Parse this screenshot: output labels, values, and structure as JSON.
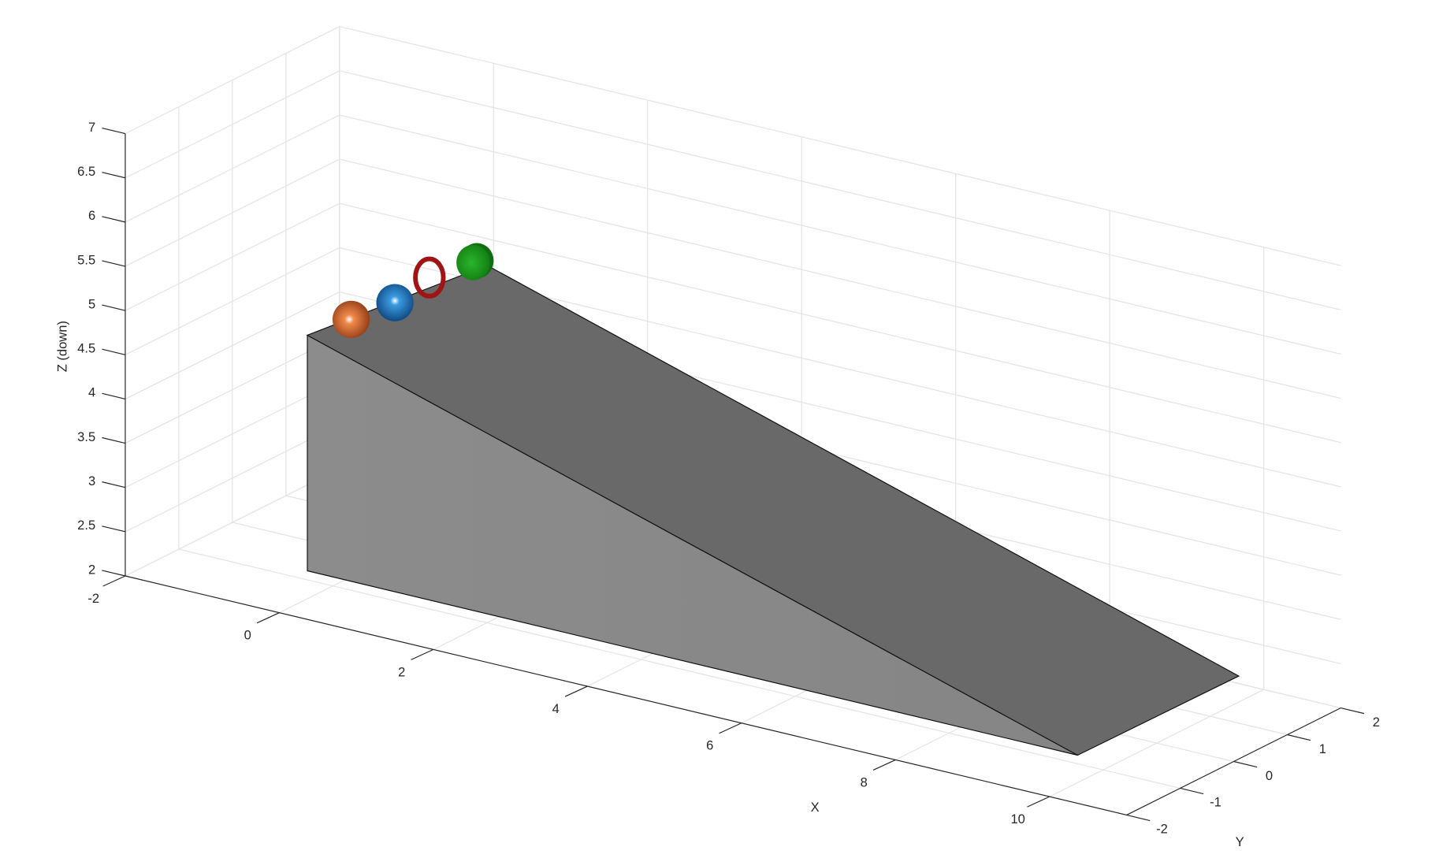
{
  "chart_data": {
    "type": "scene3d",
    "x_label": "X",
    "y_label": "Y",
    "z_label": "Z (down)",
    "xlim": [
      -2,
      11
    ],
    "ylim": [
      -2,
      2
    ],
    "zlim": [
      2,
      7
    ],
    "xticks": [
      -2,
      0,
      2,
      4,
      6,
      8,
      10
    ],
    "yticks": [
      -2,
      -1,
      0,
      1,
      2
    ],
    "zticks": [
      2,
      2.5,
      3,
      3.5,
      4,
      4.5,
      5,
      5.5,
      6,
      6.5,
      7
    ],
    "grid": true
  }
}
